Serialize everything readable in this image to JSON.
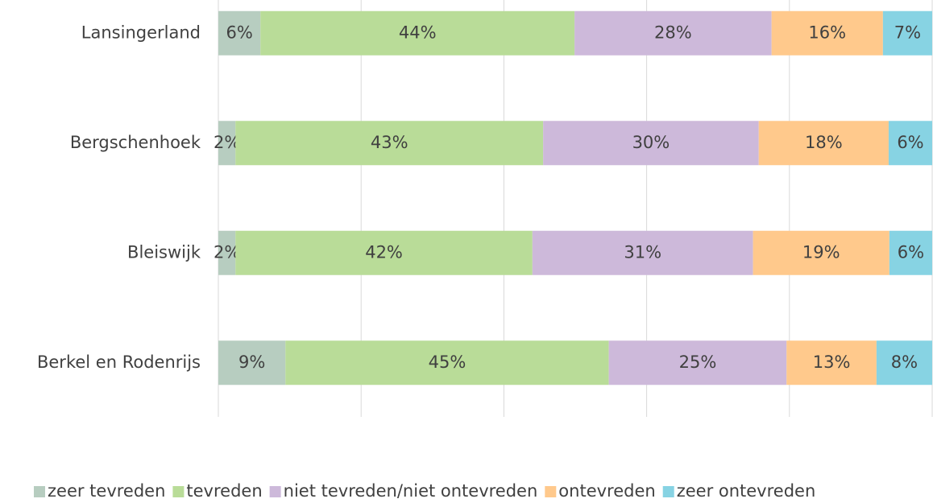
{
  "chart_data": {
    "type": "stacked-bar-horizontal",
    "categories": [
      "Lansingerland",
      "Bergschenhoek",
      "Bleiswijk",
      "Berkel en Rodenrijs"
    ],
    "series": [
      {
        "name": "zeer tevreden",
        "color": "#b7cdc0",
        "values": [
          5.9,
          2.4,
          2.4,
          9.4
        ],
        "value_labels": [
          "6%",
          "2%",
          "2%",
          "9%"
        ]
      },
      {
        "name": "tevreden",
        "color": "#b9dc98",
        "values": [
          44.0,
          43.1,
          41.6,
          45.3
        ],
        "value_labels": [
          "44%",
          "43%",
          "42%",
          "45%"
        ]
      },
      {
        "name": "niet tevreden/niet ontevreden",
        "color": "#cdb9da",
        "values": [
          27.6,
          30.2,
          30.9,
          24.9
        ],
        "value_labels": [
          "28%",
          "30%",
          "31%",
          "25%"
        ]
      },
      {
        "name": "ontevreden",
        "color": "#ffc98c",
        "values": [
          15.6,
          18.2,
          19.1,
          12.6
        ],
        "value_labels": [
          "16%",
          "18%",
          "19%",
          "13%"
        ]
      },
      {
        "name": "zeer ontevreden",
        "color": "#87d3e3",
        "values": [
          6.9,
          6.1,
          6.0,
          7.8
        ],
        "value_labels": [
          "7%",
          "6%",
          "6%",
          "8%"
        ]
      }
    ],
    "xlim": [
      0,
      100
    ],
    "xticks": [
      0,
      20,
      40,
      60,
      80,
      100
    ],
    "grid": true,
    "legend": "bottom"
  }
}
